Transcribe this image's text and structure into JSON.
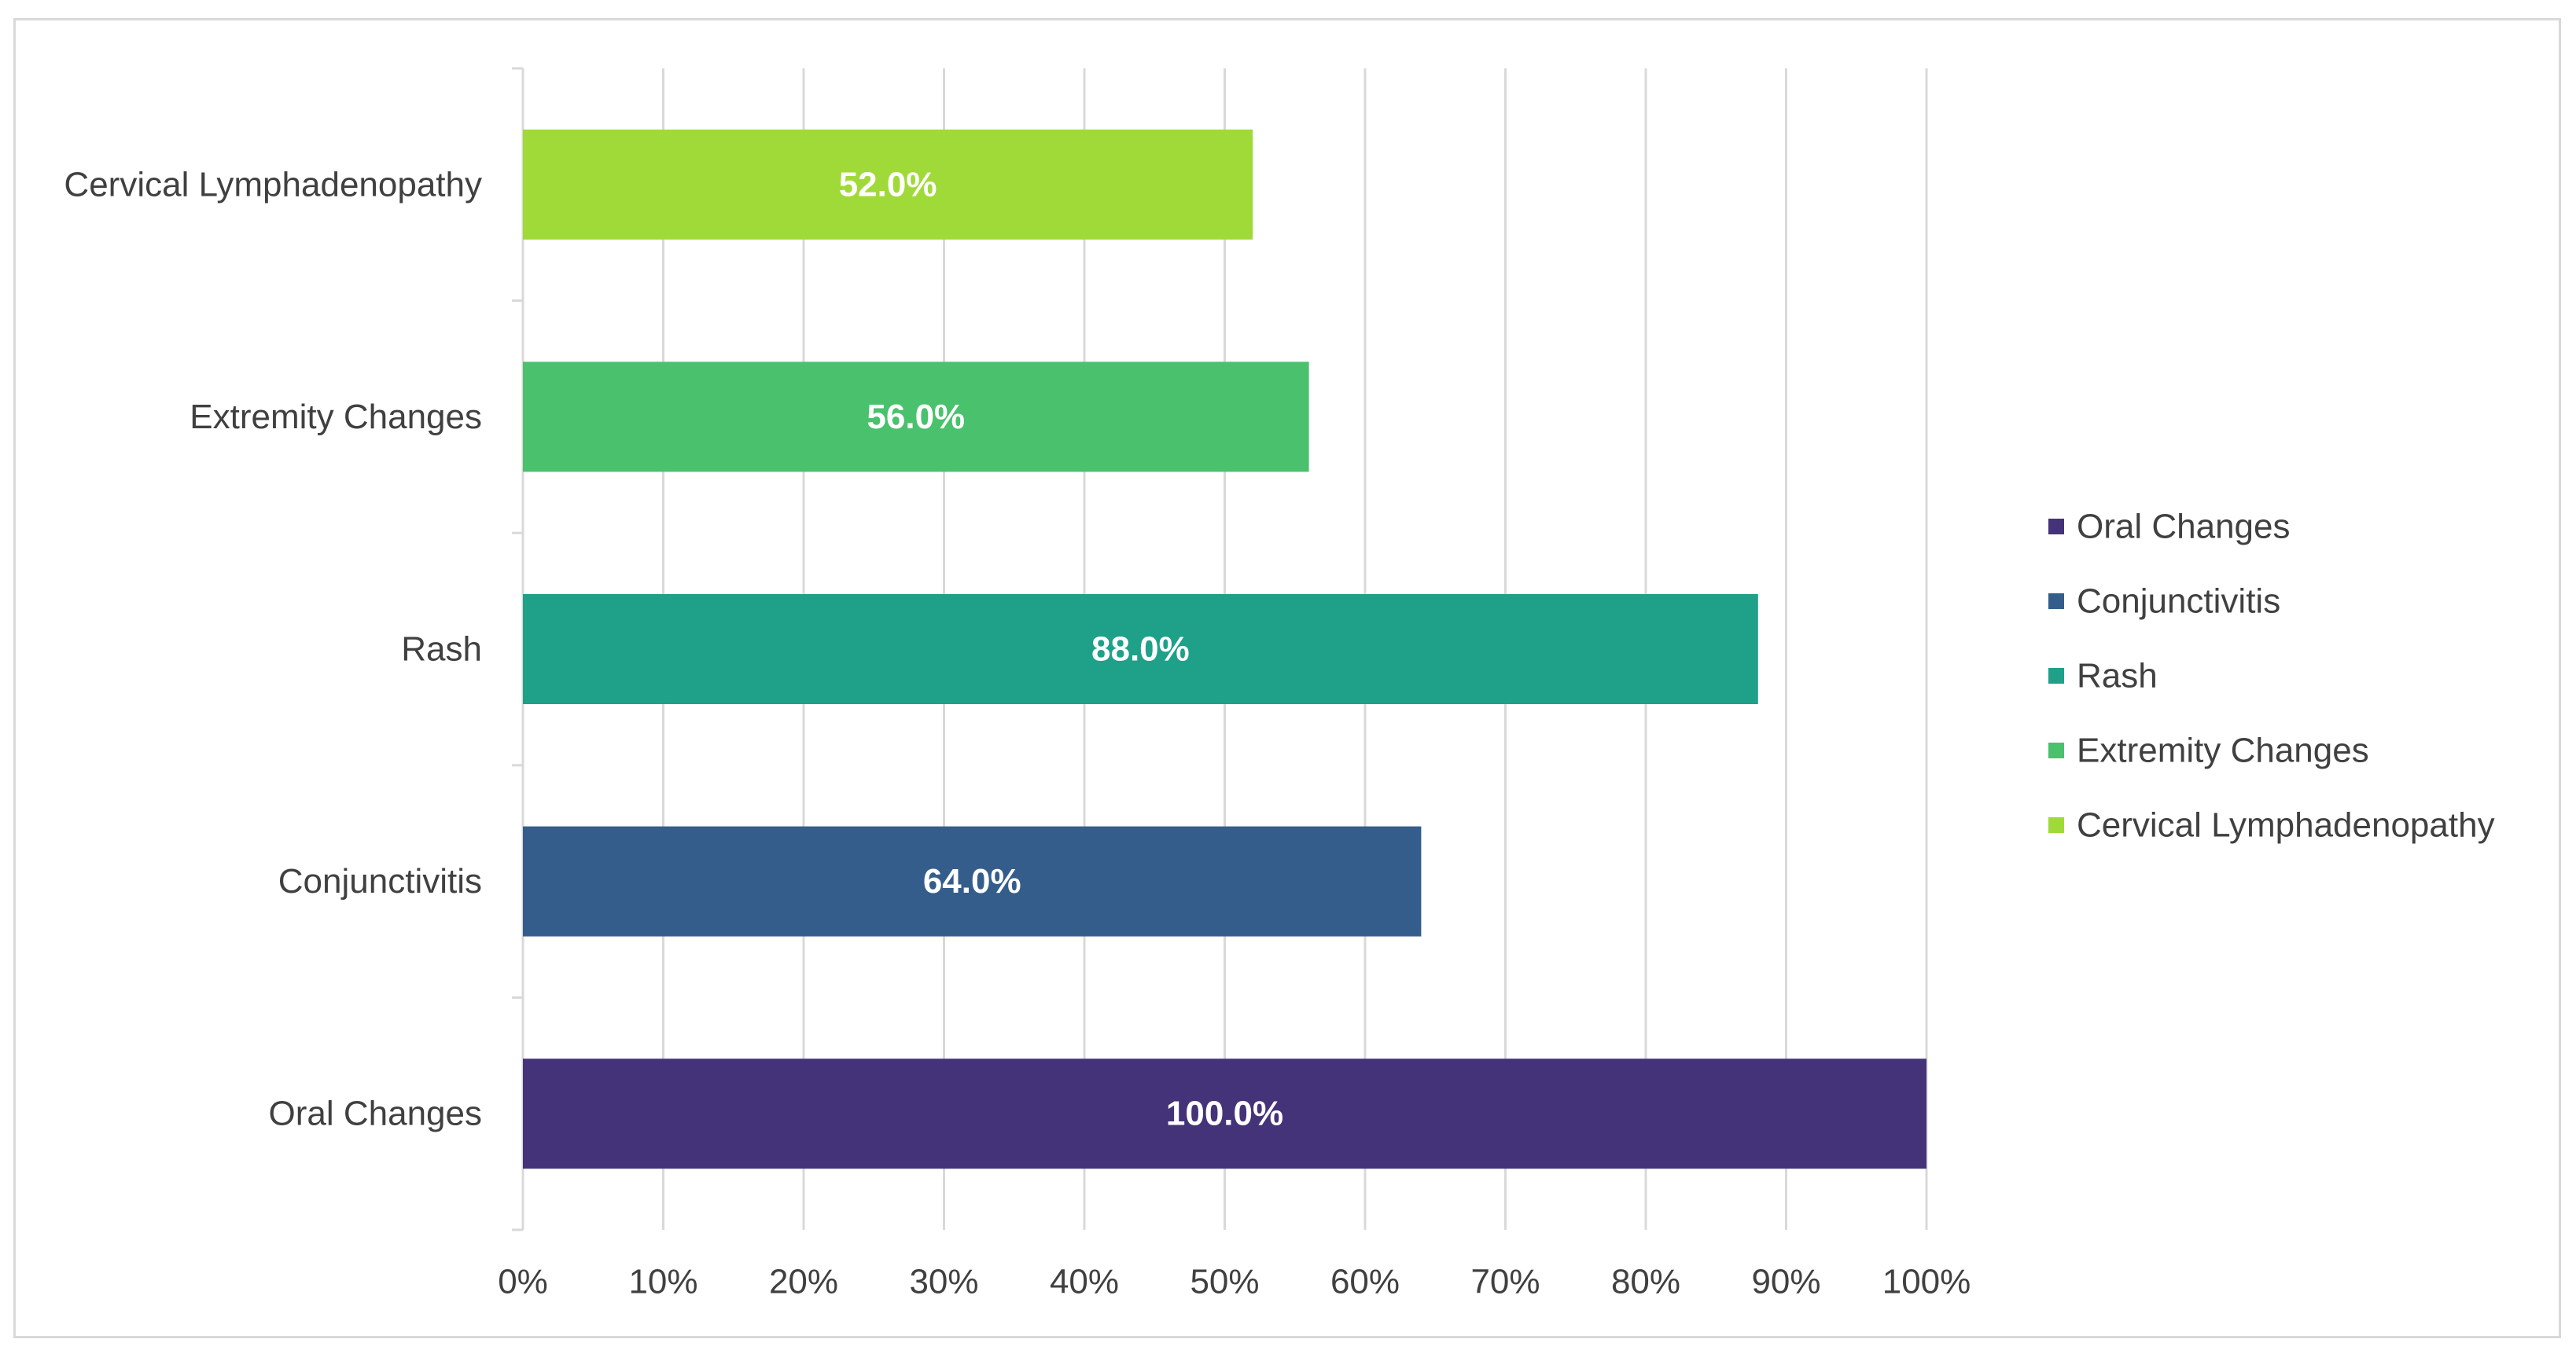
{
  "chart_data": {
    "type": "bar",
    "orientation": "horizontal",
    "title": "",
    "xlabel": "",
    "ylabel": "",
    "xlim": [
      0,
      100
    ],
    "x_ticks": [
      0,
      10,
      20,
      30,
      40,
      50,
      60,
      70,
      80,
      90,
      100
    ],
    "tick_format": "{v}%",
    "grid": true,
    "legend_position": "right",
    "categories": [
      "Oral Changes",
      "Conjunctivitis",
      "Rash",
      "Extremity Changes",
      "Cervical Lymphadenopathy"
    ],
    "values": [
      100.0,
      64.0,
      88.0,
      56.0,
      52.0
    ],
    "data_labels": [
      "100.0%",
      "64.0%",
      "88.0%",
      "56.0%",
      "52.0%"
    ],
    "colors": [
      "#443379",
      "#355d8c",
      "#1fa088",
      "#4ac16d",
      "#a0da39"
    ],
    "legend": [
      "Oral Changes",
      "Conjunctivitis",
      "Rash",
      "Extremity Changes",
      "Cervical Lymphadenopathy"
    ]
  }
}
